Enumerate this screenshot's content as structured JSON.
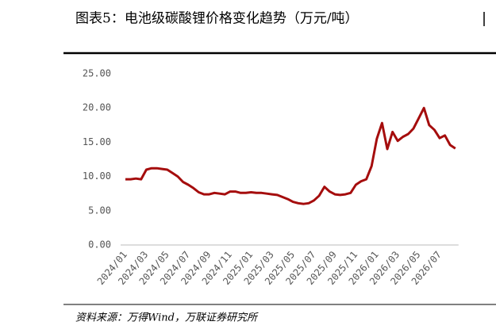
{
  "chart_data": {
    "type": "line",
    "title": "图表5：电池级碳酸锂价格变化趋势（万元/吨）",
    "source": "资料来源：万得Wind，万联证券研究所",
    "categories": [
      "2024/01",
      null,
      null,
      null,
      "2024/03",
      null,
      null,
      null,
      "2024/05",
      null,
      null,
      null,
      "2024/07",
      null,
      null,
      null,
      "2024/09",
      null,
      null,
      null,
      "2024/11",
      null,
      null,
      null,
      "2025/01",
      null,
      null,
      null,
      "2025/03",
      null,
      null,
      null,
      "2025/05",
      null,
      null,
      null,
      "2025/07",
      null,
      null,
      null,
      "2025/09",
      null,
      null,
      null,
      "2025/11",
      null,
      null,
      null,
      "2026/01",
      null,
      null,
      null,
      "2026/03",
      null,
      null,
      null,
      "2026/05",
      null,
      null,
      null,
      "2026/07",
      null,
      null,
      null
    ],
    "series": [
      {
        "name": "电池级碳酸锂",
        "color": "#a50d0d",
        "values": [
          9.6,
          9.6,
          9.7,
          9.6,
          11.0,
          11.2,
          11.2,
          11.1,
          11.0,
          10.5,
          10.0,
          9.2,
          8.8,
          8.3,
          7.7,
          7.4,
          7.4,
          7.6,
          7.5,
          7.4,
          7.8,
          7.8,
          7.6,
          7.6,
          7.7,
          7.6,
          7.6,
          7.5,
          7.4,
          7.3,
          7.0,
          6.7,
          6.3,
          6.1,
          6.0,
          6.1,
          6.5,
          7.2,
          8.5,
          7.8,
          7.4,
          7.3,
          7.4,
          7.6,
          8.8,
          9.3,
          9.6,
          11.5,
          15.5,
          17.8,
          14.0,
          16.5,
          15.2,
          15.8,
          16.2,
          17.0,
          18.5,
          20.0,
          17.5,
          16.8,
          15.6,
          16.0,
          14.6,
          14.1
        ]
      }
    ],
    "ylim": [
      0,
      25
    ],
    "yticks": [
      {
        "value": 0,
        "label": "0.00"
      },
      {
        "value": 5,
        "label": "5.00"
      },
      {
        "value": 10,
        "label": "10.00"
      },
      {
        "value": 15,
        "label": "15.00"
      },
      {
        "value": 20,
        "label": "20.00"
      },
      {
        "value": 25,
        "label": "25.00"
      }
    ],
    "grid": false
  }
}
